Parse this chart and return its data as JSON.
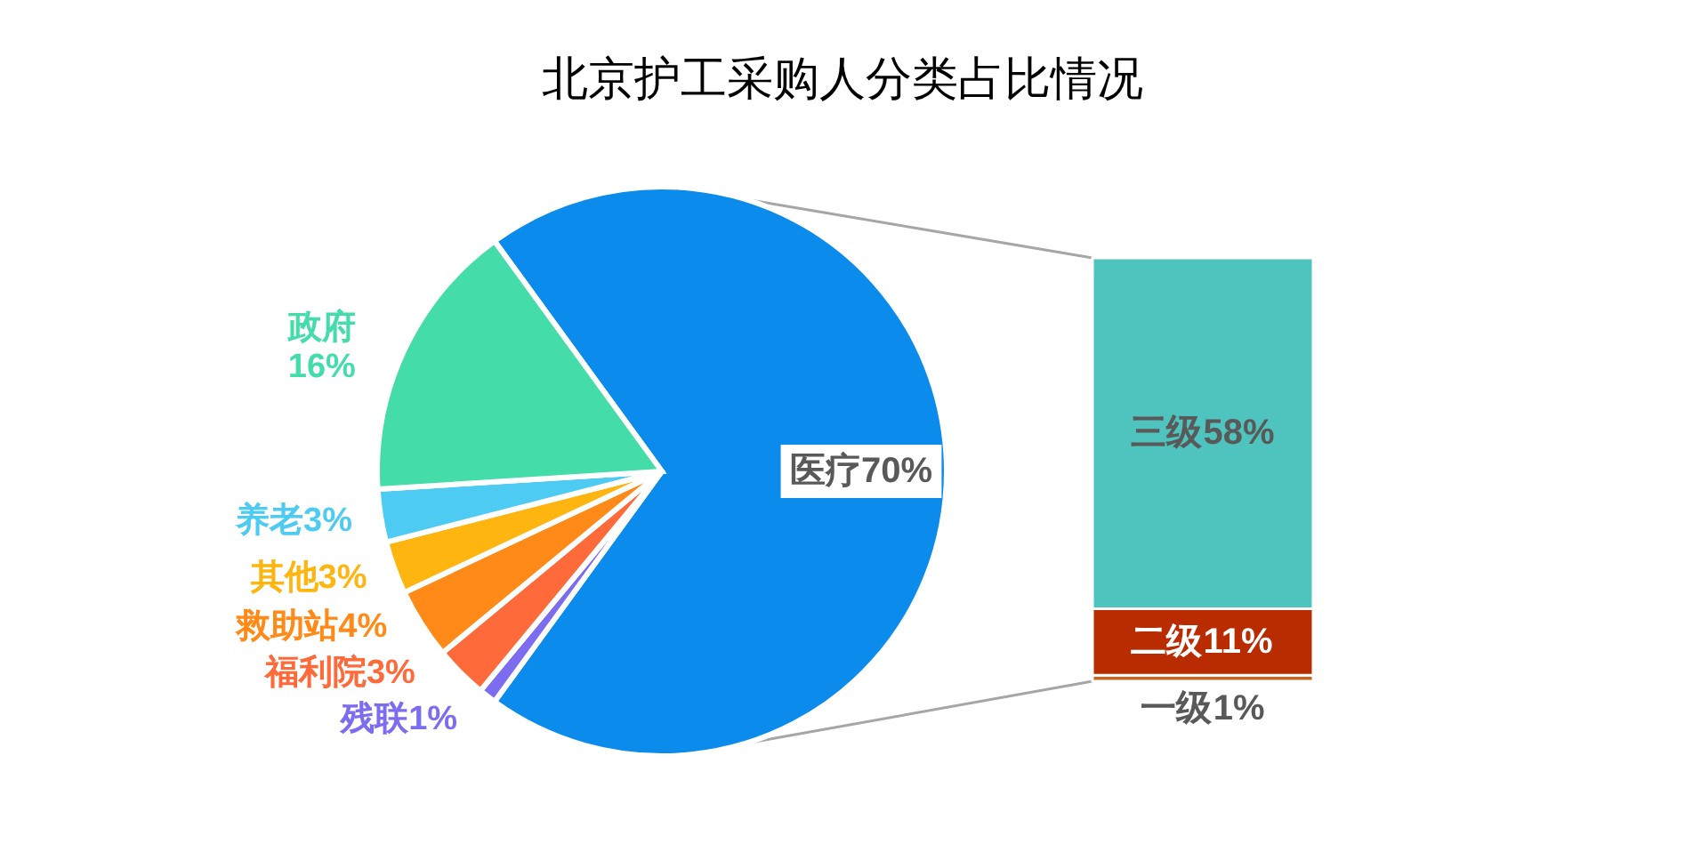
{
  "chart_data": [
    {
      "type": "pie",
      "title": "北京护工采购人分类占比情况",
      "categories": [
        "医疗",
        "残联",
        "福利院",
        "救助站",
        "其他",
        "养老",
        "政府"
      ],
      "values": [
        70,
        1,
        3,
        4,
        3,
        3,
        16
      ],
      "colors": [
        "#0B8BEC",
        "#7B6CF0",
        "#FF6A3A",
        "#FF8A17",
        "#FFB510",
        "#4DCBF2",
        "#44DDAA"
      ],
      "value_labels": [
        "70%",
        "1%",
        "3%",
        "4%",
        "3%",
        "3%",
        "16%"
      ]
    },
    {
      "type": "bar",
      "stacked": true,
      "categories": [
        null
      ],
      "series": [
        {
          "name": "一级",
          "color": "#C8641E",
          "values": [
            1
          ],
          "value_labels": [
            "1%"
          ]
        },
        {
          "name": "二级",
          "color": "#B92B00",
          "values": [
            11
          ],
          "value_labels": [
            "11%"
          ]
        },
        {
          "name": "三级",
          "color": "#4FC4BF",
          "values": [
            58
          ],
          "value_labels": [
            "58%"
          ]
        }
      ]
    }
  ]
}
